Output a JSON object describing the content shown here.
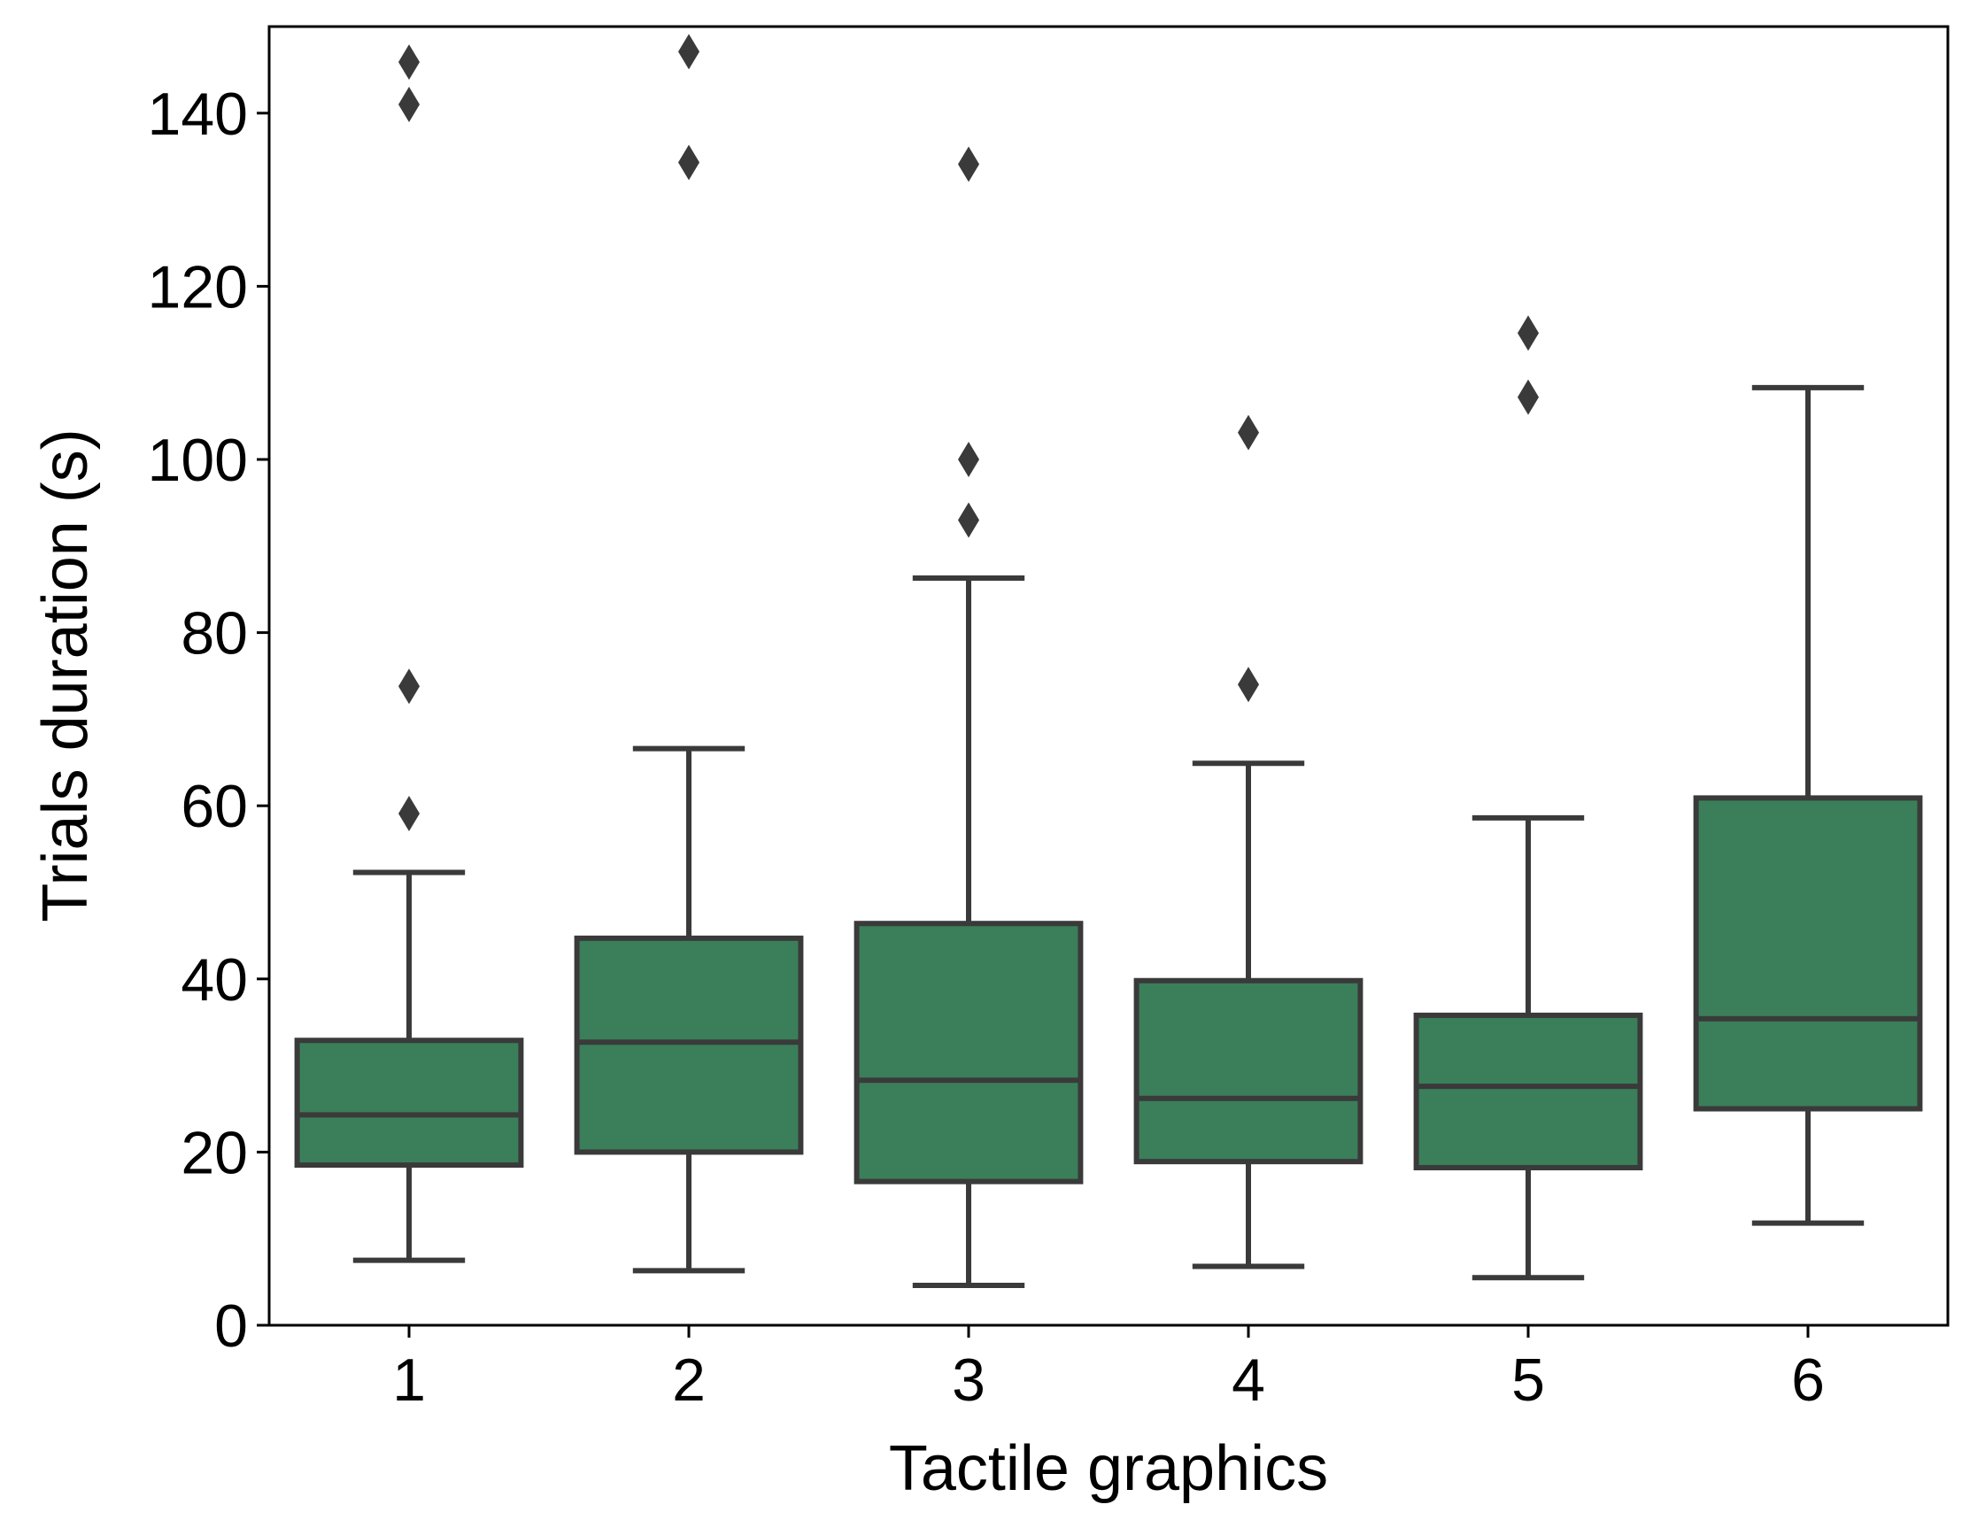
{
  "chart_data": {
    "type": "box",
    "title": "",
    "xlabel": "Tactile graphics",
    "ylabel": "Trials duration (s)",
    "ylim": [
      0,
      150
    ],
    "yticks": [
      0,
      20,
      40,
      60,
      80,
      100,
      120,
      140
    ],
    "categories": [
      "1",
      "2",
      "3",
      "4",
      "5",
      "6"
    ],
    "boxes": [
      {
        "category": "1",
        "whisker_low": 7.5,
        "q1": 18.5,
        "median": 24.3,
        "q3": 32.9,
        "whisker_high": 52.3,
        "outliers": [
          59.1,
          73.8,
          141.0,
          145.9
        ]
      },
      {
        "category": "2",
        "whisker_low": 6.3,
        "q1": 20.0,
        "median": 32.7,
        "q3": 44.7,
        "whisker_high": 66.6,
        "outliers": [
          134.3,
          147.1
        ]
      },
      {
        "category": "3",
        "whisker_low": 4.6,
        "q1": 16.6,
        "median": 28.3,
        "q3": 46.4,
        "whisker_high": 86.3,
        "outliers": [
          93.0,
          100.0,
          134.1
        ]
      },
      {
        "category": "4",
        "whisker_low": 6.8,
        "q1": 18.9,
        "median": 26.2,
        "q3": 39.8,
        "whisker_high": 64.9,
        "outliers": [
          74.0,
          103.1
        ]
      },
      {
        "category": "5",
        "whisker_low": 5.5,
        "q1": 18.2,
        "median": 27.6,
        "q3": 35.8,
        "whisker_high": 58.6,
        "outliers": [
          107.2,
          114.6
        ]
      },
      {
        "category": "6",
        "whisker_low": 11.8,
        "q1": 25.0,
        "median": 35.4,
        "q3": 60.9,
        "whisker_high": 108.3,
        "outliers": []
      }
    ],
    "colors": {
      "box_fill": "#3a7f5a",
      "line": "#3a3a3a",
      "axis": "#000000"
    }
  }
}
